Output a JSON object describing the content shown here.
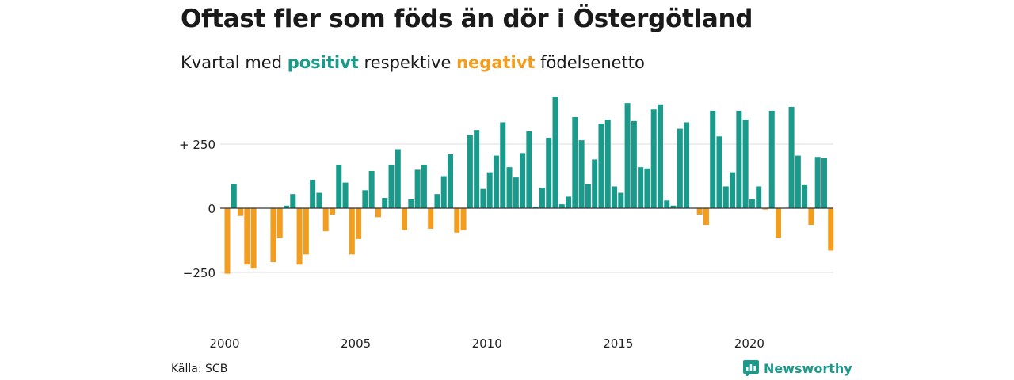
{
  "header": {
    "title": "Oftast fler som föds än dör i Östergötland",
    "subtitle_pre": "Kvartal med",
    "subtitle_positive": "positivt",
    "subtitle_mid": "respektive",
    "subtitle_negative": "negativt",
    "subtitle_post": "födelsenetto"
  },
  "footer": {
    "source": "Källa: SCB",
    "brand": "Newsworthy"
  },
  "colors": {
    "positive": "#1a9a8a",
    "negative": "#f29d1e",
    "grid": "#dddddd",
    "axis": "#333333"
  },
  "chart_data": {
    "type": "bar",
    "grid": true,
    "ylim": [
      -310,
      430
    ],
    "y_ticks": [
      {
        "value": 250,
        "label": "+ 250"
      },
      {
        "value": 0,
        "label": "0"
      },
      {
        "value": -250,
        "label": "−250"
      }
    ],
    "x_ticks": [
      "2000",
      "2005",
      "2010",
      "2015",
      "2020"
    ],
    "start_year": 2000,
    "quarters_per_year": 4,
    "values": [
      -255,
      95,
      -30,
      -220,
      -235,
      0,
      0,
      -210,
      -115,
      10,
      55,
      -220,
      -180,
      110,
      60,
      -90,
      -25,
      170,
      100,
      -180,
      -120,
      70,
      145,
      -35,
      40,
      170,
      230,
      -85,
      35,
      150,
      170,
      -80,
      55,
      125,
      210,
      -95,
      -85,
      285,
      305,
      75,
      140,
      205,
      335,
      160,
      120,
      215,
      300,
      5,
      80,
      275,
      435,
      15,
      45,
      355,
      265,
      95,
      190,
      330,
      345,
      85,
      60,
      410,
      340,
      160,
      155,
      385,
      405,
      30,
      10,
      310,
      335,
      0,
      -25,
      -65,
      380,
      280,
      85,
      140,
      380,
      345,
      35,
      85,
      -5,
      380,
      -115,
      0,
      395,
      205,
      90,
      -65,
      200,
      195,
      -165
    ]
  }
}
